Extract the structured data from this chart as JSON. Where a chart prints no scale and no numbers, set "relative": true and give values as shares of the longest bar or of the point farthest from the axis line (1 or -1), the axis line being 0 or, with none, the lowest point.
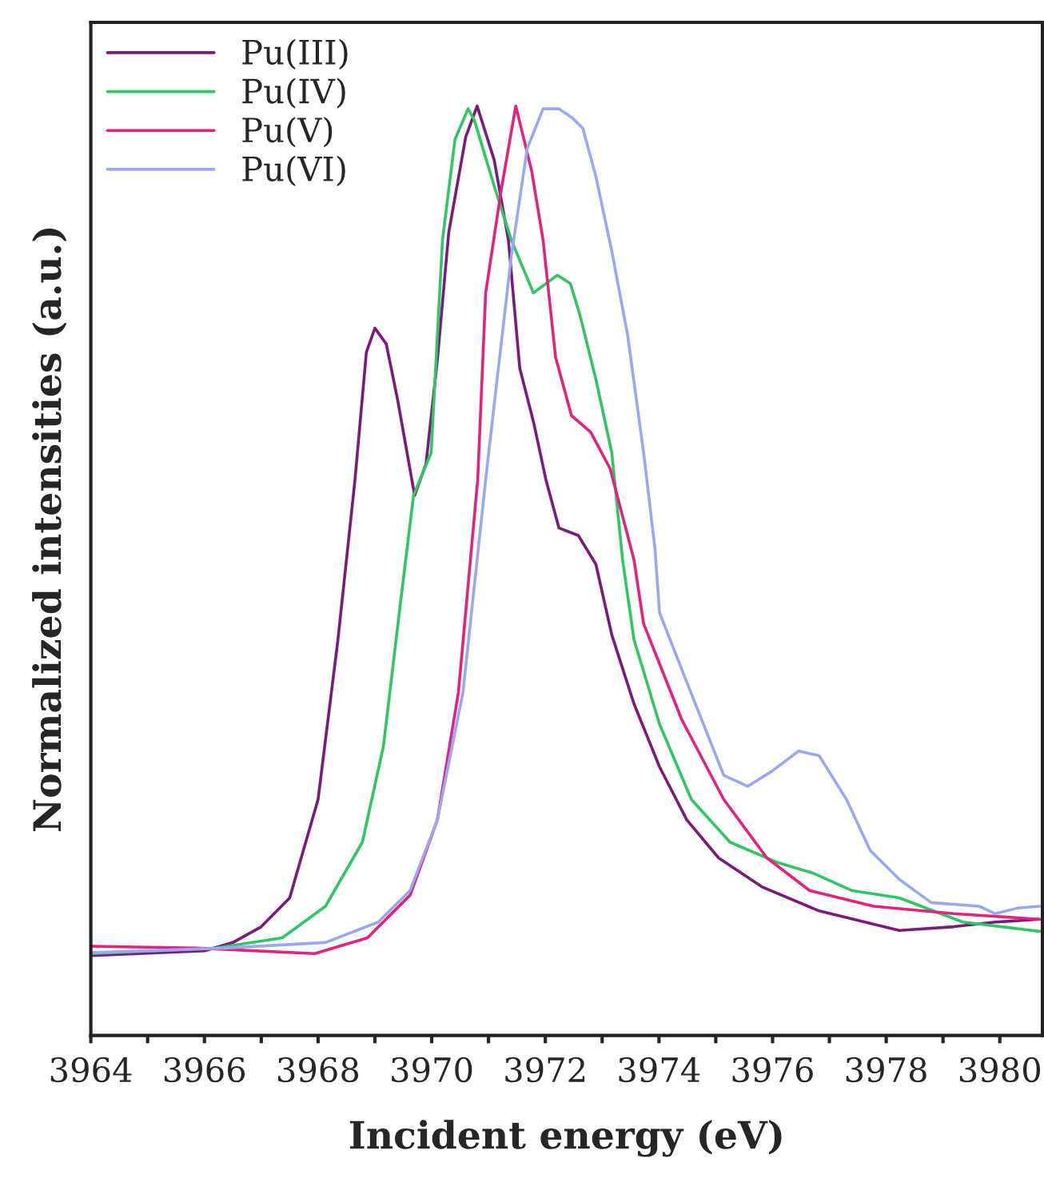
{
  "chart_data": {
    "type": "line",
    "relative": true,
    "xlabel": "Incident energy (eV)",
    "ylabel": "Normalized intensities (a.u.)",
    "xlim": [
      3964,
      3980.75
    ],
    "xticks": [
      3964,
      {
        "value": 3965,
        "label": null
      },
      3966,
      {
        "value": 3967,
        "label": null
      },
      3968,
      {
        "value": 3969,
        "label": null
      },
      3970,
      {
        "value": 3971,
        "label": null
      },
      3972,
      {
        "value": 3973,
        "label": null
      },
      3974,
      {
        "value": 3975,
        "label": null
      },
      3976,
      {
        "value": 3977,
        "label": null
      },
      3978,
      {
        "value": 3979,
        "label": null
      },
      3980
    ],
    "legend": "top left",
    "grid": false,
    "marker": "none",
    "line_style": "solid",
    "series": [
      {
        "name": "Pu(III)",
        "color": "#7b1a7b",
        "x": [
          3964,
          3966,
          3966.5,
          3967,
          3967.5,
          3968,
          3968.35,
          3968.65,
          3968.85,
          3969.0,
          3969.2,
          3969.4,
          3969.7,
          3969.9,
          3970.1,
          3970.3,
          3970.6,
          3970.8,
          3971.1,
          3971.35,
          3971.55,
          3971.8,
          3972.01,
          3972.24,
          3972.58,
          3972.89,
          3973.17,
          3973.56,
          3974.01,
          3974.49,
          3975.05,
          3975.81,
          3976.82,
          3978.23,
          3979.19,
          3979.92,
          3980.7
        ],
        "values": [
          0.086,
          0.091,
          0.1,
          0.117,
          0.148,
          0.254,
          0.426,
          0.598,
          0.735,
          0.761,
          0.744,
          0.684,
          0.581,
          0.615,
          0.727,
          0.864,
          0.967,
          1.0,
          0.942,
          0.856,
          0.718,
          0.658,
          0.598,
          0.546,
          0.538,
          0.507,
          0.431,
          0.357,
          0.289,
          0.232,
          0.191,
          0.16,
          0.134,
          0.113,
          0.117,
          0.122,
          0.125
        ]
      },
      {
        "name": "Pu(IV)",
        "color": "#2ec763",
        "x": [
          3964,
          3966.2,
          3967.37,
          3968.13,
          3968.78,
          3969.15,
          3969.43,
          3969.68,
          3969.99,
          3970.19,
          3970.41,
          3970.64,
          3970.75,
          3971.11,
          3971.4,
          3971.79,
          3972.21,
          3972.44,
          3972.61,
          3972.89,
          3973.17,
          3973.36,
          3973.56,
          3974.01,
          3974.57,
          3975.25,
          3976.09,
          3976.74,
          3977.39,
          3978.23,
          3979.35,
          3980.7
        ],
        "values": [
          0.088,
          0.094,
          0.105,
          0.139,
          0.208,
          0.311,
          0.455,
          0.581,
          0.627,
          0.856,
          0.964,
          0.997,
          0.985,
          0.912,
          0.856,
          0.799,
          0.818,
          0.809,
          0.775,
          0.706,
          0.627,
          0.512,
          0.426,
          0.335,
          0.254,
          0.208,
          0.186,
          0.174,
          0.156,
          0.148,
          0.122,
          0.112
        ]
      },
      {
        "name": "Pu(V)",
        "color": "#e6207e",
        "x": [
          3964,
          3965.88,
          3967.94,
          3968.87,
          3969.62,
          3970.1,
          3970.47,
          3970.81,
          3970.95,
          3971.23,
          3971.48,
          3971.76,
          3971.96,
          3972.18,
          3972.46,
          3972.8,
          3973.14,
          3973.56,
          3973.73,
          3974.4,
          3975.14,
          3975.9,
          3976.65,
          3977.78,
          3979.19,
          3980.7
        ],
        "values": [
          0.096,
          0.094,
          0.088,
          0.105,
          0.151,
          0.232,
          0.369,
          0.598,
          0.799,
          0.912,
          1.0,
          0.93,
          0.856,
          0.73,
          0.667,
          0.649,
          0.61,
          0.512,
          0.443,
          0.34,
          0.254,
          0.191,
          0.156,
          0.139,
          0.131,
          0.125
        ]
      },
      {
        "name": "Pu(VI)",
        "color": "#9aa8f2",
        "x": [
          3964,
          3966.33,
          3968.13,
          3969.06,
          3969.62,
          3970.1,
          3970.55,
          3970.95,
          3971.11,
          3971.4,
          3971.68,
          3971.96,
          3972.24,
          3972.46,
          3972.66,
          3972.89,
          3973.17,
          3973.45,
          3973.73,
          3973.93,
          3974.01,
          3974.49,
          3975.14,
          3975.56,
          3975.98,
          3976.46,
          3976.82,
          3977.3,
          3977.72,
          3978.23,
          3978.79,
          3979.64,
          3979.92,
          3980.31,
          3980.7
        ],
        "values": [
          0.089,
          0.094,
          0.1,
          0.122,
          0.156,
          0.232,
          0.369,
          0.598,
          0.684,
          0.838,
          0.954,
          0.997,
          0.997,
          0.988,
          0.976,
          0.924,
          0.844,
          0.753,
          0.627,
          0.524,
          0.455,
          0.38,
          0.28,
          0.268,
          0.284,
          0.306,
          0.301,
          0.254,
          0.199,
          0.168,
          0.143,
          0.139,
          0.131,
          0.137,
          0.139
        ]
      }
    ]
  }
}
